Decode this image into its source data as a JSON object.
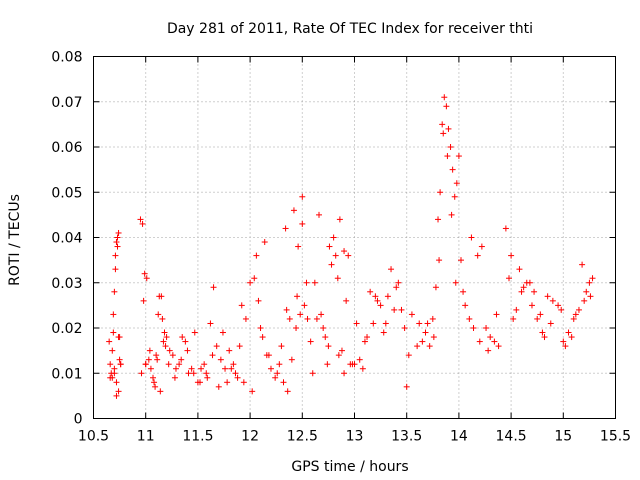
{
  "chart_data": {
    "type": "scatter",
    "title": "Day 281 of 2011, Rate Of TEC Index for receiver thti",
    "xlabel": "GPS time / hours",
    "ylabel": "ROTI / TECUs",
    "xlim": [
      10.5,
      15.5
    ],
    "ylim": [
      0,
      0.08
    ],
    "x_ticks": [
      10.5,
      11,
      11.5,
      12,
      12.5,
      13,
      13.5,
      14,
      14.5,
      15,
      15.5
    ],
    "x_tick_labels": [
      "10.5",
      "11",
      "11.5",
      "12",
      "12.5",
      "13",
      "13.5",
      "14",
      "14.5",
      "15",
      "15.5"
    ],
    "y_ticks": [
      0,
      0.01,
      0.02,
      0.03,
      0.04,
      0.05,
      0.06,
      0.07,
      0.08
    ],
    "y_tick_labels": [
      "0",
      "0.01",
      "0.02",
      "0.03",
      "0.04",
      "0.05",
      "0.06",
      "0.07",
      "0.08"
    ],
    "grid": true,
    "marker": "+",
    "marker_color": "#ff0000",
    "series": [
      {
        "name": "ROTI",
        "x": [
          10.65,
          10.66,
          10.67,
          10.68,
          10.69,
          10.7,
          10.71,
          10.72,
          10.73,
          10.74,
          10.75,
          10.76,
          10.66,
          10.68,
          10.7,
          10.72,
          10.74,
          10.76,
          10.69,
          10.71,
          10.73,
          10.75,
          10.7,
          10.72,
          10.74,
          10.95,
          10.97,
          10.99,
          11.01,
          11.03,
          11.05,
          11.07,
          11.09,
          11.11,
          11.13,
          11.15,
          11.17,
          11.19,
          10.96,
          11.0,
          11.04,
          11.08,
          11.12,
          11.16,
          10.98,
          11.0,
          11.1,
          11.14,
          11.18,
          11.2,
          11.23,
          11.26,
          11.29,
          11.32,
          11.35,
          11.38,
          11.41,
          11.44,
          11.47,
          11.5,
          11.53,
          11.56,
          11.59,
          11.62,
          11.65,
          11.22,
          11.28,
          11.34,
          11.4,
          11.46,
          11.52,
          11.58,
          11.64,
          11.68,
          11.72,
          11.76,
          11.8,
          11.84,
          11.88,
          11.92,
          11.96,
          12.0,
          12.04,
          12.08,
          12.12,
          11.7,
          11.78,
          11.86,
          11.94,
          12.02,
          12.1,
          11.74,
          11.82,
          11.9,
          12.06,
          12.14,
          12.16,
          12.2,
          12.24,
          12.28,
          12.32,
          12.36,
          12.4,
          12.44,
          12.48,
          12.52,
          12.18,
          12.26,
          12.34,
          12.42,
          12.5,
          12.3,
          12.38,
          12.46,
          12.54,
          12.35,
          12.45,
          12.5,
          12.55,
          12.58,
          12.62,
          12.66,
          12.7,
          12.74,
          12.78,
          12.82,
          12.86,
          12.9,
          12.94,
          12.98,
          12.6,
          12.68,
          12.76,
          12.84,
          12.92,
          12.64,
          12.72,
          12.8,
          12.88,
          12.96,
          12.75,
          12.85,
          12.9,
          13.0,
          13.05,
          13.1,
          13.15,
          13.2,
          13.25,
          13.3,
          13.35,
          13.4,
          13.45,
          13.5,
          13.55,
          13.02,
          13.12,
          13.22,
          13.32,
          13.42,
          13.52,
          13.08,
          13.18,
          13.28,
          13.38,
          13.48,
          13.6,
          13.65,
          13.7,
          13.75,
          13.78,
          13.8,
          13.82,
          13.84,
          13.86,
          13.88,
          13.9,
          13.92,
          13.94,
          13.96,
          13.98,
          14.0,
          13.62,
          13.68,
          13.72,
          13.76,
          13.81,
          13.85,
          13.89,
          13.93,
          13.97,
          14.02,
          14.06,
          14.1,
          14.14,
          14.18,
          14.22,
          14.26,
          14.3,
          14.34,
          14.38,
          14.04,
          14.12,
          14.2,
          14.28,
          14.36,
          14.45,
          14.5,
          14.55,
          14.6,
          14.65,
          14.7,
          14.75,
          14.8,
          14.85,
          14.9,
          14.48,
          14.52,
          14.58,
          14.62,
          14.68,
          14.72,
          14.78,
          14.82,
          14.88,
          14.95,
          15.0,
          15.05,
          15.1,
          15.15,
          15.2,
          15.25,
          15.28,
          14.98,
          15.02,
          15.08,
          15.12,
          15.18,
          15.22,
          15.26
        ],
        "y": [
          0.017,
          0.012,
          0.01,
          0.009,
          0.023,
          0.028,
          0.036,
          0.039,
          0.04,
          0.041,
          0.018,
          0.012,
          0.009,
          0.015,
          0.011,
          0.008,
          0.006,
          0.012,
          0.019,
          0.033,
          0.038,
          0.013,
          0.01,
          0.005,
          0.018,
          0.044,
          0.043,
          0.032,
          0.031,
          0.013,
          0.011,
          0.009,
          0.007,
          0.013,
          0.027,
          0.027,
          0.017,
          0.016,
          0.01,
          0.012,
          0.015,
          0.008,
          0.023,
          0.022,
          0.026,
          0.012,
          0.014,
          0.006,
          0.019,
          0.018,
          0.015,
          0.014,
          0.011,
          0.012,
          0.018,
          0.017,
          0.01,
          0.011,
          0.019,
          0.008,
          0.011,
          0.012,
          0.009,
          0.021,
          0.029,
          0.012,
          0.009,
          0.013,
          0.015,
          0.01,
          0.008,
          0.01,
          0.014,
          0.016,
          0.013,
          0.011,
          0.015,
          0.012,
          0.009,
          0.025,
          0.022,
          0.03,
          0.031,
          0.026,
          0.018,
          0.007,
          0.008,
          0.01,
          0.008,
          0.006,
          0.02,
          0.019,
          0.011,
          0.016,
          0.036,
          0.039,
          0.014,
          0.011,
          0.009,
          0.012,
          0.008,
          0.006,
          0.013,
          0.02,
          0.023,
          0.025,
          0.014,
          0.01,
          0.042,
          0.046,
          0.049,
          0.016,
          0.022,
          0.038,
          0.03,
          0.024,
          0.027,
          0.043,
          0.022,
          0.017,
          0.03,
          0.045,
          0.02,
          0.012,
          0.034,
          0.036,
          0.044,
          0.037,
          0.036,
          0.012,
          0.01,
          0.023,
          0.038,
          0.031,
          0.026,
          0.022,
          0.018,
          0.04,
          0.015,
          0.012,
          0.016,
          0.014,
          0.01,
          0.012,
          0.013,
          0.017,
          0.028,
          0.027,
          0.025,
          0.021,
          0.033,
          0.029,
          0.024,
          0.007,
          0.023,
          0.021,
          0.018,
          0.026,
          0.027,
          0.03,
          0.014,
          0.011,
          0.021,
          0.019,
          0.024,
          0.02,
          0.016,
          0.017,
          0.021,
          0.022,
          0.029,
          0.044,
          0.05,
          0.065,
          0.071,
          0.069,
          0.064,
          0.06,
          0.055,
          0.049,
          0.052,
          0.058,
          0.021,
          0.019,
          0.016,
          0.018,
          0.035,
          0.063,
          0.058,
          0.045,
          0.03,
          0.035,
          0.025,
          0.022,
          0.02,
          0.036,
          0.038,
          0.02,
          0.018,
          0.017,
          0.016,
          0.028,
          0.04,
          0.017,
          0.015,
          0.023,
          0.042,
          0.036,
          0.024,
          0.028,
          0.03,
          0.025,
          0.022,
          0.019,
          0.027,
          0.026,
          0.031,
          0.022,
          0.033,
          0.029,
          0.03,
          0.028,
          0.023,
          0.018,
          0.021,
          0.025,
          0.017,
          0.019,
          0.022,
          0.024,
          0.026,
          0.03,
          0.031,
          0.024,
          0.016,
          0.018,
          0.023,
          0.034,
          0.028,
          0.027
        ]
      }
    ]
  }
}
